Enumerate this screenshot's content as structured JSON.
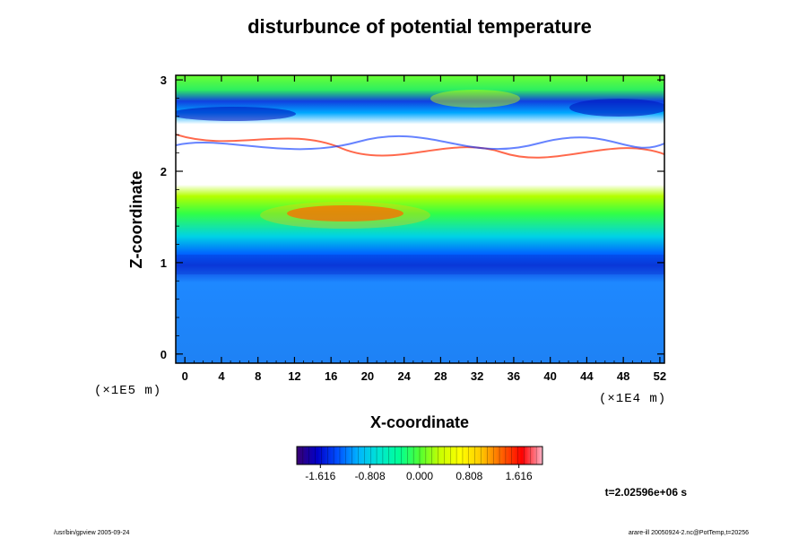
{
  "chart_data": {
    "type": "heatmap",
    "title": "disturbunce of potential temperature",
    "xlabel": "X-coordinate",
    "ylabel": "Z-coordinate",
    "x_scale_note": "(×1E4 m)",
    "z_scale_note": "(×1E5 m)",
    "xlim": [
      -1,
      52.5
    ],
    "ylim": [
      -0.1,
      3.05
    ],
    "x_ticks": [
      0,
      4,
      8,
      12,
      16,
      20,
      24,
      28,
      32,
      36,
      40,
      44,
      48,
      52
    ],
    "x_tick_labels": [
      "0",
      "4",
      "8",
      "12",
      "16",
      "20",
      "24",
      "28",
      "32",
      "36",
      "40",
      "44",
      "48",
      "52"
    ],
    "y_ticks": [
      0,
      1,
      2,
      3
    ],
    "y_tick_labels": [
      "0",
      "1",
      "2",
      "3"
    ],
    "field_rows_approx": [
      {
        "z": 2.9,
        "value": 0.4
      },
      {
        "z": 2.6,
        "value": -1.2
      },
      {
        "z": 2.3,
        "value": 2.5
      },
      {
        "z": 2.0,
        "value": 3.0
      },
      {
        "z": 1.6,
        "value": 1.2
      },
      {
        "z": 1.3,
        "value": 0.0
      },
      {
        "z": 1.0,
        "value": -0.9
      },
      {
        "z": 0.5,
        "value": -0.6
      },
      {
        "z": 0.0,
        "value": -0.7
      }
    ],
    "colorbar": {
      "min": -2.0,
      "max": 2.0,
      "tick_values": [
        -1.616,
        -0.808,
        0.0,
        0.808,
        1.616
      ],
      "tick_labels": [
        "-1.616",
        "-0.808",
        "0.000",
        "0.808",
        "1.616"
      ],
      "colors": [
        "#3a0070",
        "#0000c8",
        "#0050ff",
        "#00b4ff",
        "#00e6d2",
        "#00ff96",
        "#50ff32",
        "#c8ff00",
        "#ffff00",
        "#ffc800",
        "#ff6400",
        "#ff0000",
        "#ffb4c8"
      ]
    },
    "time_label": "t=2.02596e+06 s"
  },
  "footer": {
    "left": "/usr/bin/gpview 2005-09-24",
    "right": "arare-ill 20050924-2.nc@PotTemp,t=20256"
  }
}
